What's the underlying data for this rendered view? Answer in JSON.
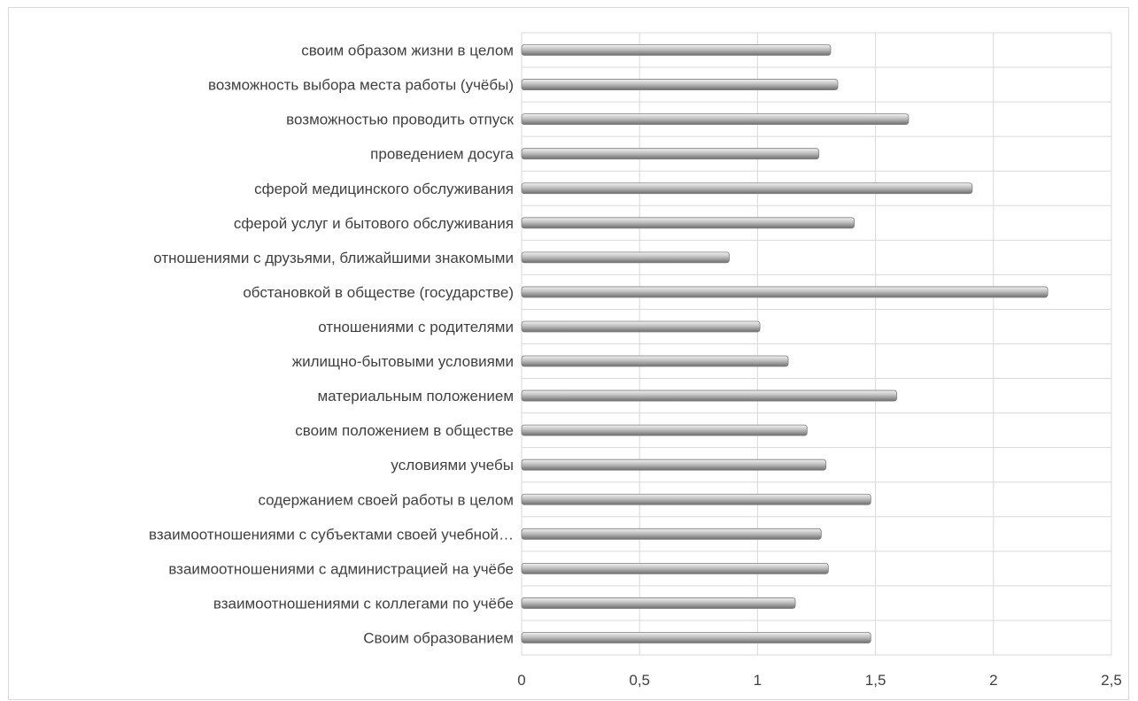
{
  "chart_data": {
    "type": "bar",
    "orientation": "horizontal",
    "categories": [
      "своим образом жизни в целом",
      "возможность выбора места работы (учёбы)",
      "возможностью проводить отпуск",
      "проведением досуга",
      "сферой медицинского обслуживания",
      "сферой услуг и бытового обслуживания",
      "отношениями с друзьями, ближайшими знакомыми",
      "обстановкой в обществе (государстве)",
      "отношениями с родителями",
      "жилищно-бытовыми условиями",
      "материальным положением",
      "своим положением в обществе",
      "условиями учебы",
      "содержанием своей работы в целом",
      "взаимоотношениями с субъектами своей учебной…",
      "взаимоотношениями с администрацией на учёбе",
      "взаимоотношениями с коллегами по учёбе",
      "Своим образованием"
    ],
    "values": [
      1.31,
      1.34,
      1.64,
      1.26,
      1.91,
      1.41,
      0.88,
      2.23,
      1.01,
      1.13,
      1.59,
      1.21,
      1.29,
      1.48,
      1.27,
      1.3,
      1.16,
      1.48
    ],
    "xlim": [
      0,
      2.5
    ],
    "xticks": [
      0,
      0.5,
      1,
      1.5,
      2,
      2.5
    ],
    "xtick_labels": [
      "0",
      "0,5",
      "1",
      "1,5",
      "2",
      "2,5"
    ],
    "title": "",
    "xlabel": "",
    "ylabel": "",
    "grid": true,
    "legend": "none",
    "bar_color": "#a6a6a6"
  }
}
